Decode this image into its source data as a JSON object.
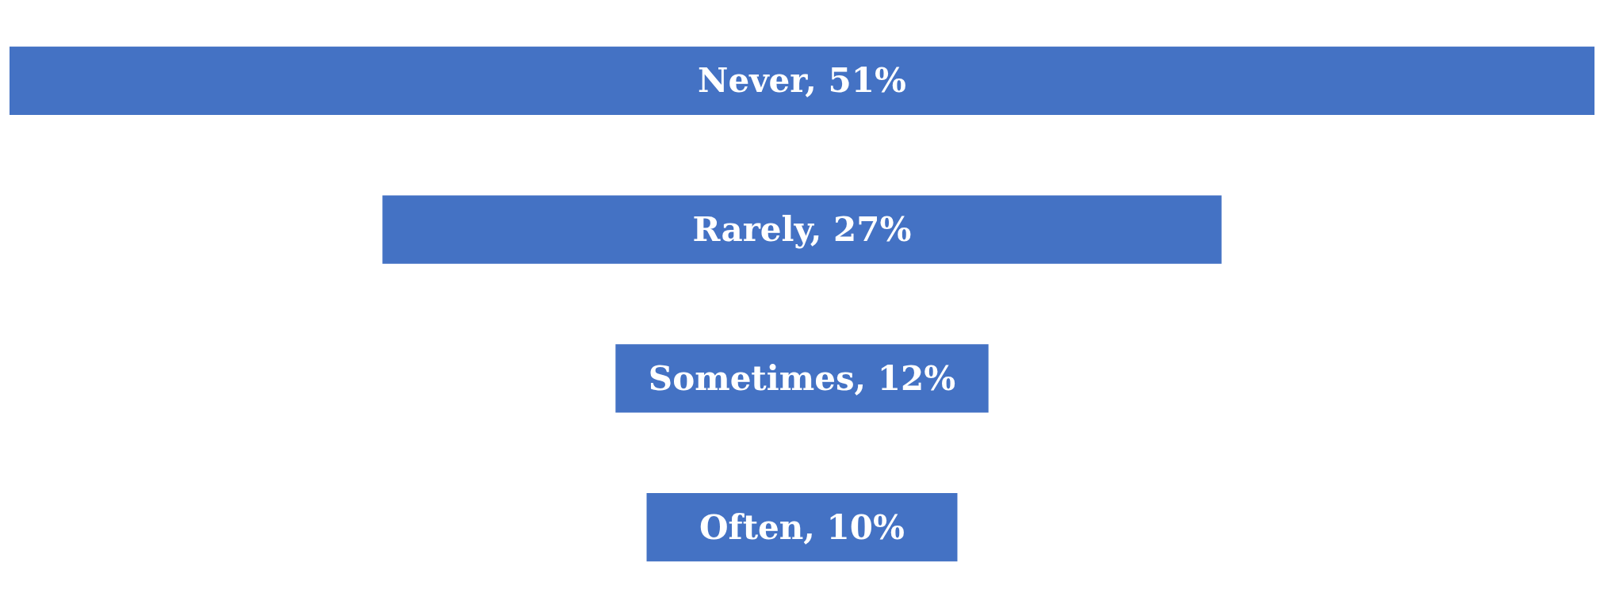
{
  "chart_data": {
    "type": "other",
    "values": [
      51,
      27,
      12,
      10
    ],
    "value_labels": [
      "Never, 51%",
      "Rarely, 27%",
      "Sometimes, 12%",
      "Often, 10%"
    ],
    "color": "#4472c4"
  }
}
